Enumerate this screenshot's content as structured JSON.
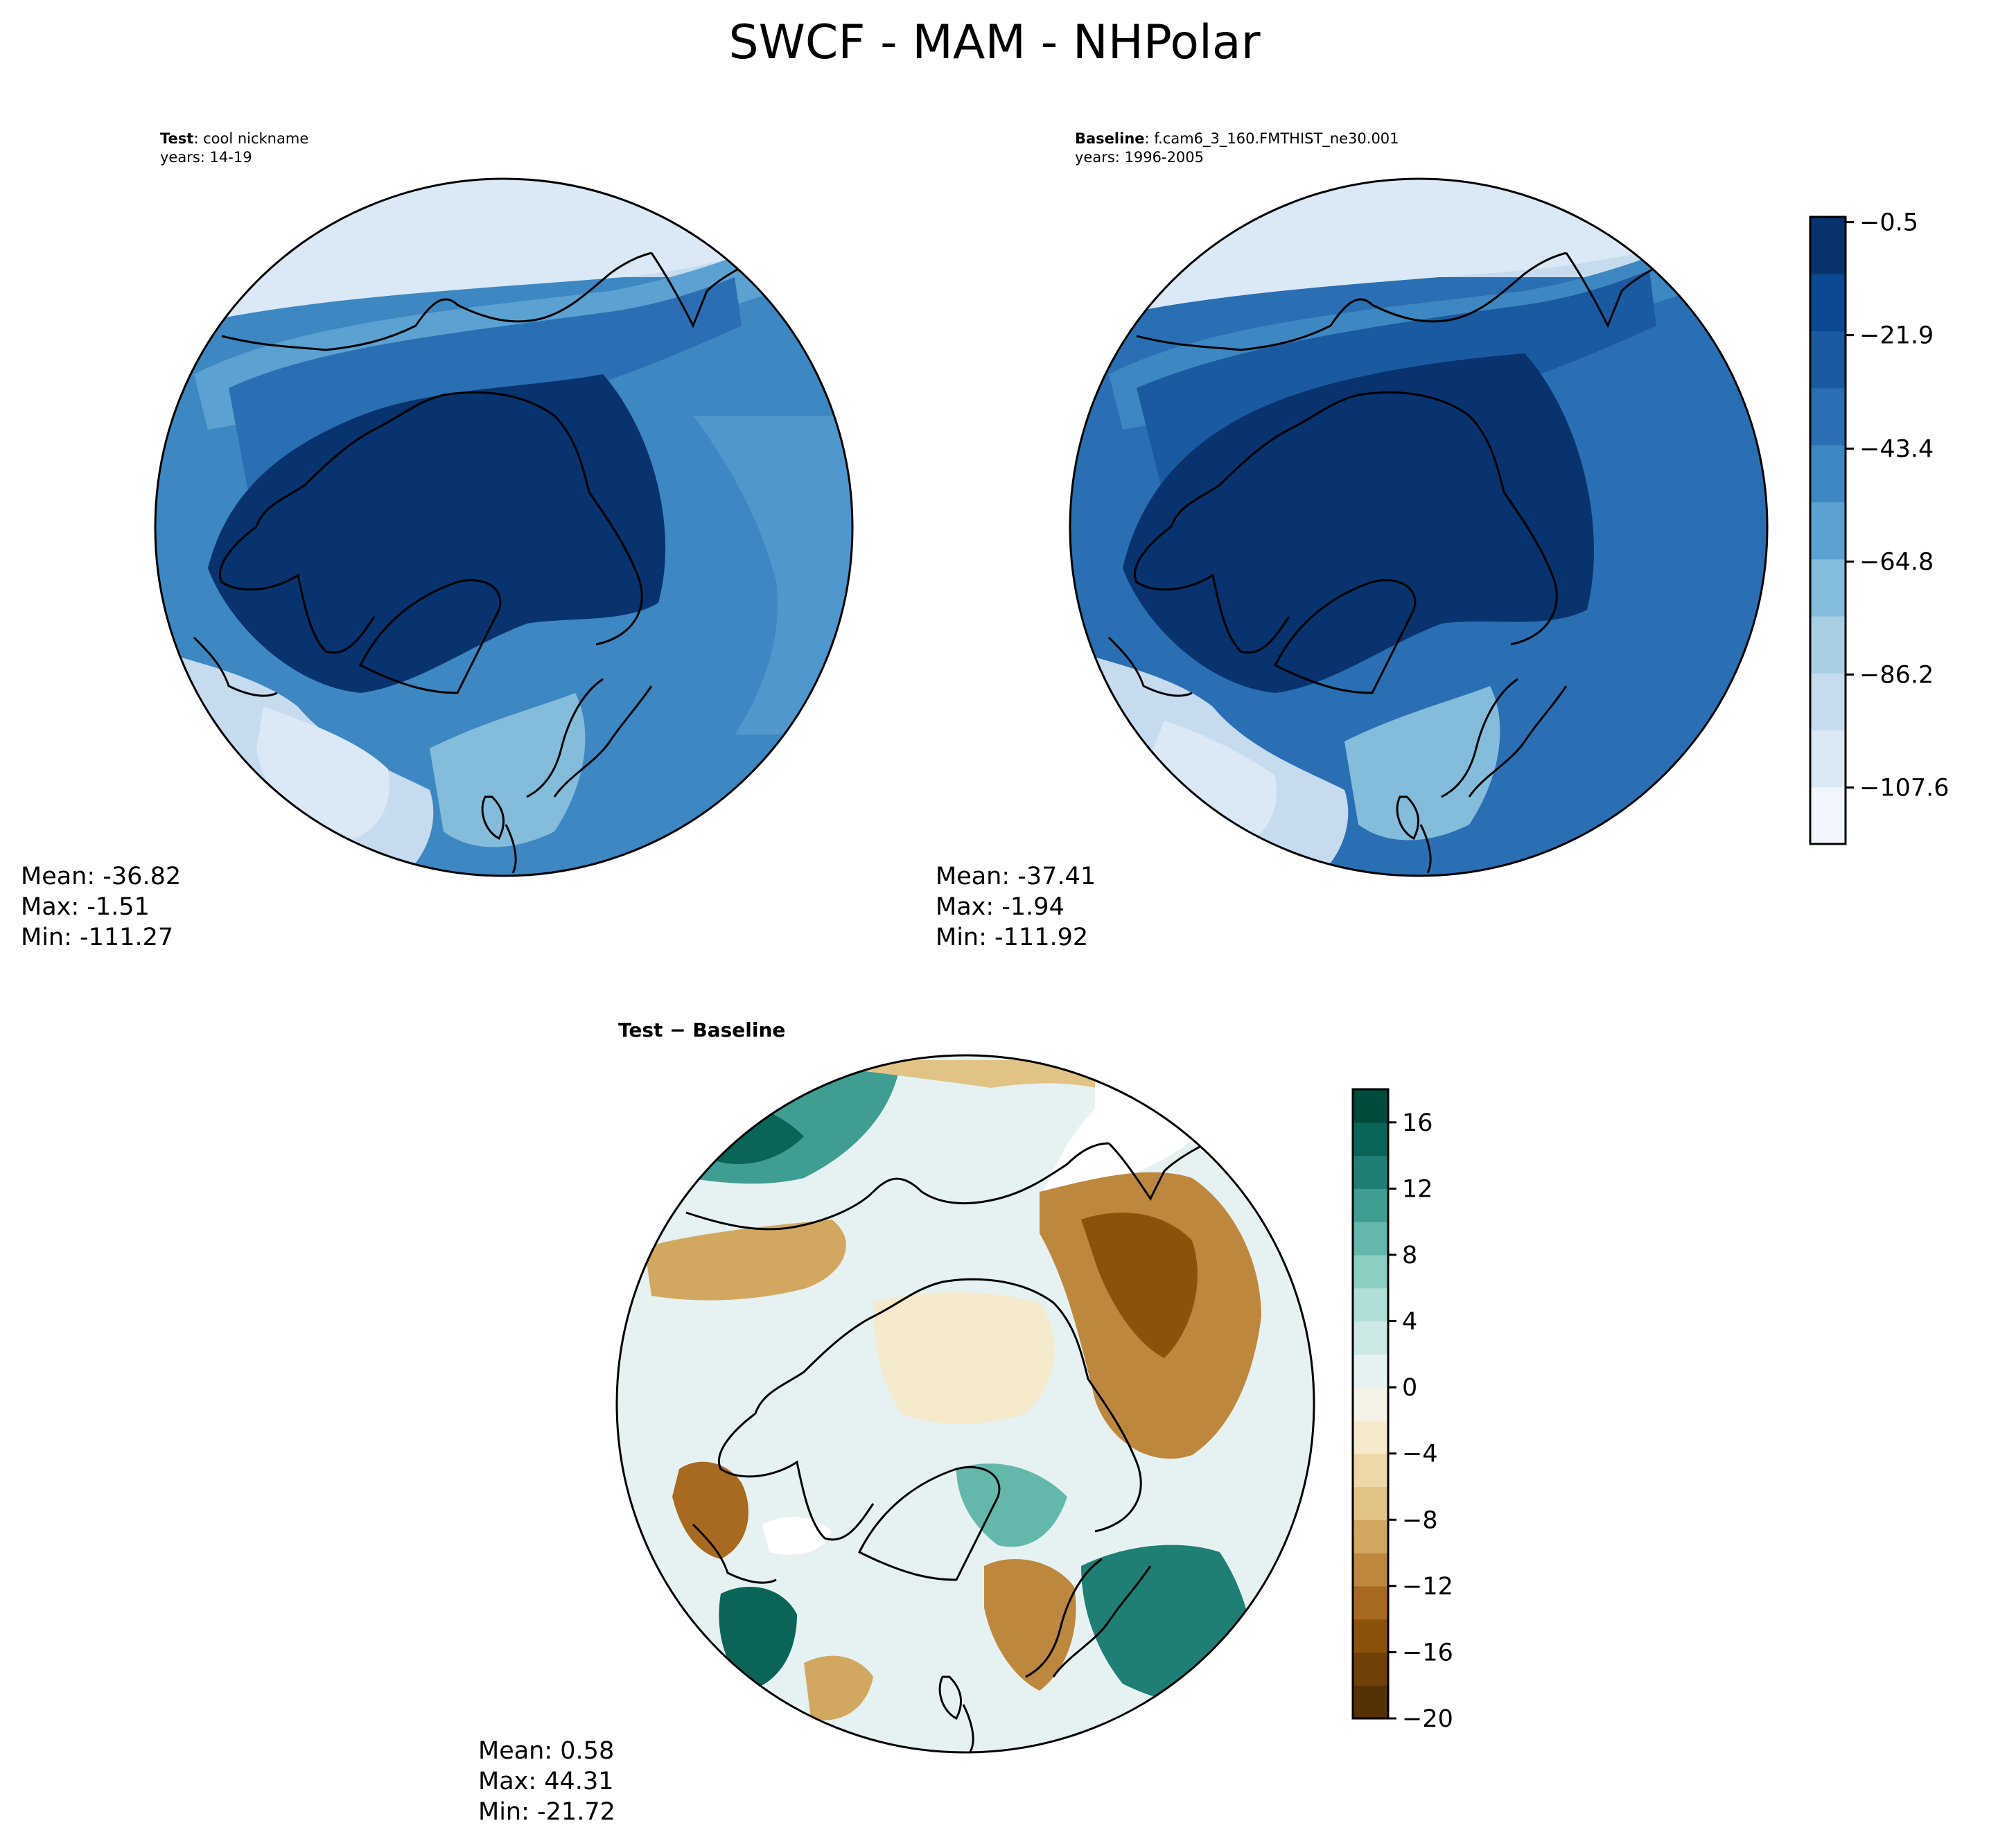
{
  "chart_data": {
    "type": "heatmap",
    "suptitle": "SWCF - MAM - NHPolar",
    "panels": [
      {
        "id": "test",
        "title_bold": "Test",
        "title_rest": ": cool nickname",
        "years": "years: 14-19",
        "projection": "north-polar stereographic",
        "stats": {
          "mean": "Mean: -36.82",
          "max": "Max: -1.51",
          "min": "Min: -111.27"
        }
      },
      {
        "id": "baseline",
        "title_bold": "Baseline",
        "title_rest": ": f.cam6_3_160.FMTHIST_ne30.001",
        "years": "years: 1996-2005",
        "projection": "north-polar stereographic",
        "stats": {
          "mean": "Mean: -37.41",
          "max": "Max: -1.94",
          "min": "Min: -111.92"
        }
      },
      {
        "id": "diff",
        "title": "Test − Baseline",
        "projection": "north-polar stereographic",
        "stats": {
          "mean": "Mean:  0.58",
          "max": "Max: 44.31",
          "min": "Min: -21.72"
        }
      }
    ],
    "colorbars": [
      {
        "id": "main",
        "colormap": "Blues",
        "range": [
          -118.3,
          0.5
        ],
        "ticks": [
          -0.5,
          -21.9,
          -43.4,
          -64.8,
          -86.2,
          -107.6
        ],
        "tick_labels": [
          "−0.5",
          "−21.9",
          "−43.4",
          "−64.8",
          "−86.2",
          "−107.6"
        ],
        "levels": 11,
        "colors": [
          "#f1f6fc",
          "#dbe8f5",
          "#c7dbef",
          "#a9cfe5",
          "#84bcdc",
          "#5ba2d2",
          "#3d87c2",
          "#2a6fb3",
          "#1a5aa1",
          "#0b4a92",
          "#08336e"
        ]
      },
      {
        "id": "diff",
        "colormap": "BrBG",
        "range": [
          -20,
          18
        ],
        "ticks": [
          16,
          12,
          8,
          4,
          0,
          -4,
          -8,
          -12,
          -16,
          -20
        ],
        "tick_labels": [
          "16",
          "12",
          "8",
          "4",
          "0",
          "−4",
          "−8",
          "−12",
          "−16",
          "−20"
        ],
        "levels": 19,
        "colors": [
          "#553206",
          "#6f4109",
          "#8b520c",
          "#a76a20",
          "#bd883d",
          "#d2a860",
          "#e1c385",
          "#eed8a9",
          "#f5eacc",
          "#f5f2e8",
          "#e6f2f1",
          "#cde9e5",
          "#afdfd6",
          "#8ccfc2",
          "#63b8ab",
          "#3f9d91",
          "#207f74",
          "#0a6558",
          "#004b3c"
        ]
      }
    ]
  }
}
